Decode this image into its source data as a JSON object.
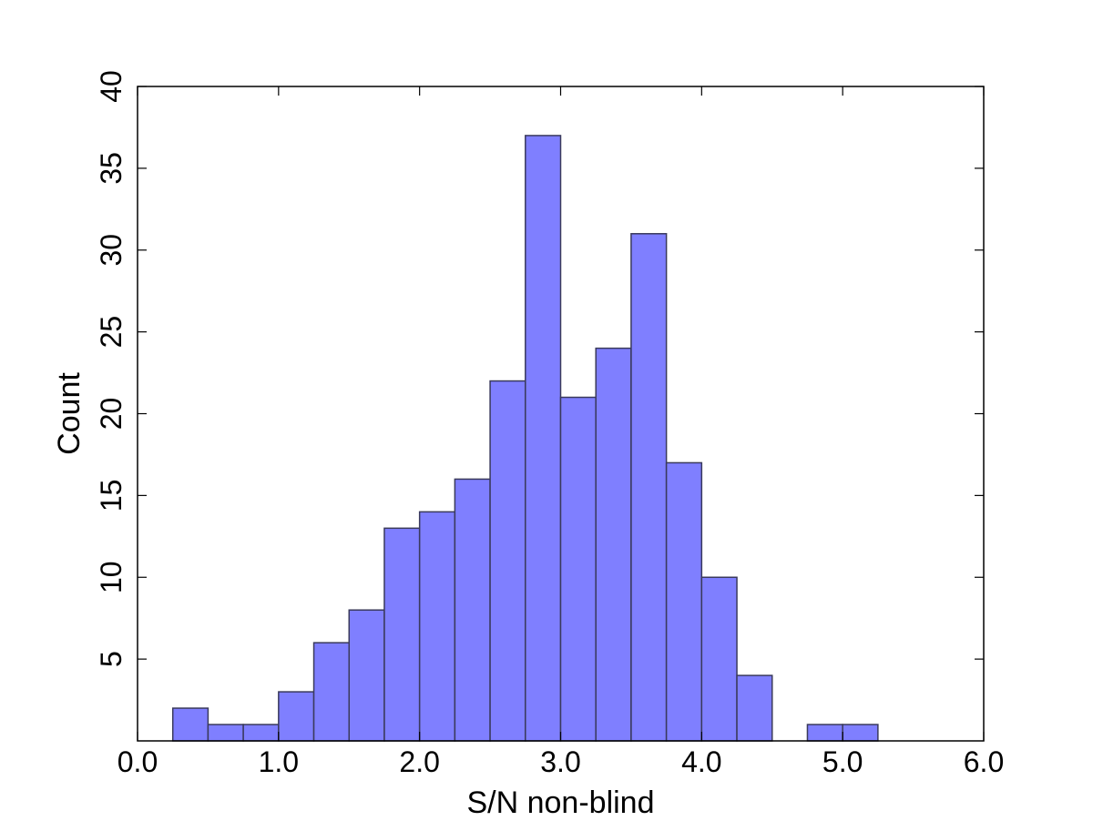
{
  "chart_data": {
    "type": "bar",
    "xlabel": "S/N non-blind",
    "ylabel": "Count",
    "xlim": [
      0.0,
      6.0
    ],
    "ylim": [
      0,
      40
    ],
    "bin_width": 0.25,
    "bins": [
      {
        "x0": 0.25,
        "x1": 0.5,
        "count": 2
      },
      {
        "x0": 0.5,
        "x1": 0.75,
        "count": 1
      },
      {
        "x0": 0.75,
        "x1": 1.0,
        "count": 1
      },
      {
        "x0": 1.0,
        "x1": 1.25,
        "count": 3
      },
      {
        "x0": 1.25,
        "x1": 1.5,
        "count": 6
      },
      {
        "x0": 1.5,
        "x1": 1.75,
        "count": 8
      },
      {
        "x0": 1.75,
        "x1": 2.0,
        "count": 13
      },
      {
        "x0": 2.0,
        "x1": 2.25,
        "count": 14
      },
      {
        "x0": 2.25,
        "x1": 2.5,
        "count": 16
      },
      {
        "x0": 2.5,
        "x1": 2.75,
        "count": 22
      },
      {
        "x0": 2.75,
        "x1": 3.0,
        "count": 37
      },
      {
        "x0": 3.0,
        "x1": 3.25,
        "count": 21
      },
      {
        "x0": 3.25,
        "x1": 3.5,
        "count": 24
      },
      {
        "x0": 3.5,
        "x1": 3.75,
        "count": 31
      },
      {
        "x0": 3.75,
        "x1": 4.0,
        "count": 17
      },
      {
        "x0": 4.0,
        "x1": 4.25,
        "count": 10
      },
      {
        "x0": 4.25,
        "x1": 4.5,
        "count": 4
      },
      {
        "x0": 4.5,
        "x1": 4.75,
        "count": 0
      },
      {
        "x0": 4.75,
        "x1": 5.0,
        "count": 1
      },
      {
        "x0": 5.0,
        "x1": 5.25,
        "count": 1
      }
    ],
    "x_ticks": [
      {
        "value": 0.0,
        "label": "0.0"
      },
      {
        "value": 1.0,
        "label": "1.0"
      },
      {
        "value": 2.0,
        "label": "2.0"
      },
      {
        "value": 3.0,
        "label": "3.0"
      },
      {
        "value": 4.0,
        "label": "4.0"
      },
      {
        "value": 5.0,
        "label": "5.0"
      },
      {
        "value": 6.0,
        "label": "6.0"
      }
    ],
    "y_ticks": [
      {
        "value": 5,
        "label": "5"
      },
      {
        "value": 10,
        "label": "10"
      },
      {
        "value": 15,
        "label": "15"
      },
      {
        "value": 20,
        "label": "20"
      },
      {
        "value": 25,
        "label": "25"
      },
      {
        "value": 30,
        "label": "30"
      },
      {
        "value": 35,
        "label": "35"
      },
      {
        "value": 40,
        "label": "40"
      }
    ],
    "grid": false,
    "colors": {
      "bar_fill": "#7f7fff",
      "bar_edge": "#3a3a5c",
      "axes": "#000000"
    }
  }
}
